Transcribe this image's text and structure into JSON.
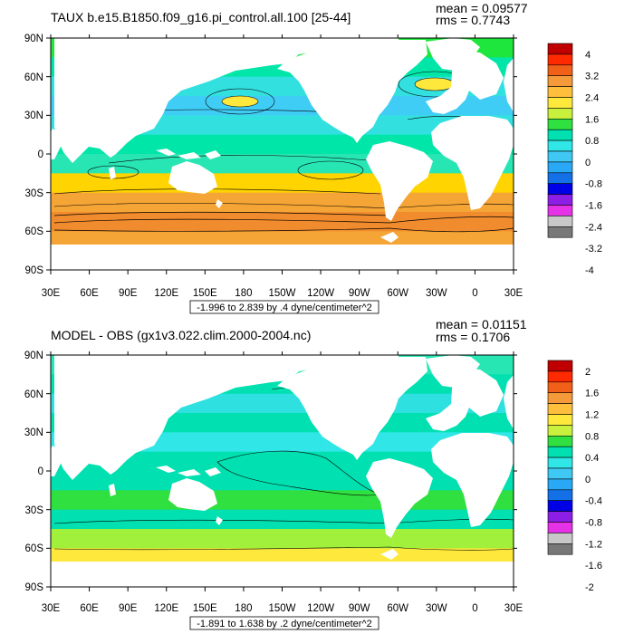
{
  "panels": [
    {
      "id": "taux",
      "title": "TAUX b.e15.B1850.f09_g16.pi_control.all.100 [25-44]",
      "mean_text": "mean = 0.09577",
      "rms_text": "rms = 0.7743",
      "range_text": "-1.996 to 2.839 by .4 dyne/centimeter^2",
      "colorbar_labels": [
        "4",
        "3.2",
        "2.4",
        "1.6",
        "0.8",
        "0",
        "-0.8",
        "-1.6",
        "-2.4",
        "-3.2",
        "-4"
      ],
      "colorbar_colors": [
        "#c00000",
        "#ff2a00",
        "#f06018",
        "#f59a3a",
        "#ffbe3c",
        "#ffe83c",
        "#c8f03c",
        "#30e040",
        "#00e0b0",
        "#30e6e6",
        "#40c8f5",
        "#28a8f5",
        "#1470e6",
        "#0000e6",
        "#8c1ee6",
        "#e632e6",
        "#c8c8c8",
        "#787878"
      ],
      "band_colors": [
        "#1ee63c",
        "#00e6a8",
        "#33e0e0",
        "#40cdf5",
        "#33e0e0",
        "#00e6a8",
        "#28e6b4",
        "#ffd400",
        "#f5a535",
        "#f08c2d",
        "#f5a535",
        "#00e0a0"
      ]
    },
    {
      "id": "diff",
      "title": "MODEL - OBS (gx1v3.022.clim.2000-2004.nc)",
      "mean_text": "mean = 0.01151",
      "rms_text": "rms = 0.1706",
      "range_text": "-1.891 to 1.638 by .2 dyne/centimeter^2",
      "colorbar_labels": [
        "2",
        "1.6",
        "1.2",
        "0.8",
        "0.4",
        "0",
        "-0.4",
        "-0.8",
        "-1.2",
        "-1.6",
        "-2"
      ],
      "colorbar_colors": [
        "#c00000",
        "#ff2a00",
        "#f06018",
        "#f59a3a",
        "#ffbe3c",
        "#ffe83c",
        "#c8f03c",
        "#30e040",
        "#00e0b0",
        "#30e6e6",
        "#40c8f5",
        "#28a8f5",
        "#1470e6",
        "#0000e6",
        "#8c1ee6",
        "#e632e6",
        "#c8c8c8",
        "#787878"
      ],
      "band_colors": [
        "#28e6b4",
        "#00e0b0",
        "#2ee0e0",
        "#00e0b0",
        "#30e6e6",
        "#00e0b0",
        "#00e0b0",
        "#30e040",
        "#00e0b0",
        "#a0f03c",
        "#ffe83c",
        "#00e0b0"
      ]
    }
  ],
  "lat_labels": [
    "90N",
    "60N",
    "30N",
    "0",
    "30S",
    "60S",
    "90S"
  ],
  "lon_labels": [
    "30E",
    "60E",
    "90E",
    "120E",
    "150E",
    "180",
    "150W",
    "120W",
    "90W",
    "60W",
    "30W",
    "0",
    "30E"
  ],
  "land_color": "#ffffff"
}
